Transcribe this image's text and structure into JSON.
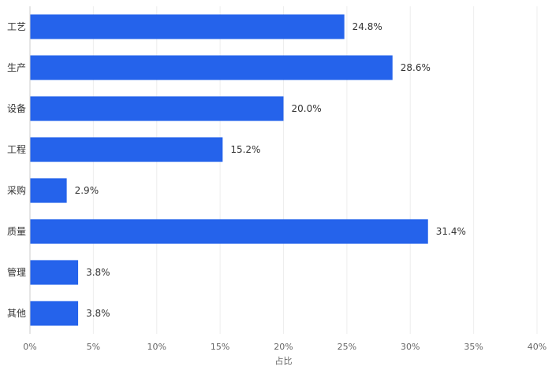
{
  "chart_data": {
    "type": "bar",
    "orientation": "horizontal",
    "categories": [
      "工艺",
      "生产",
      "设备",
      "工程",
      "采购",
      "质量",
      "管理",
      "其他"
    ],
    "values": [
      24.8,
      28.6,
      20.0,
      15.2,
      2.9,
      31.4,
      3.8,
      3.8
    ],
    "data_labels": [
      "24.8%",
      "28.6%",
      "20.0%",
      "15.2%",
      "2.9%",
      "31.4%",
      "3.8%",
      "3.8%"
    ],
    "x_ticks": [
      0,
      5,
      10,
      15,
      20,
      25,
      30,
      35,
      40
    ],
    "x_tick_labels": [
      "0%",
      "5%",
      "10%",
      "15%",
      "20%",
      "25%",
      "30%",
      "35%",
      "40%"
    ],
    "xlim": [
      0,
      40
    ],
    "xlabel": "占比",
    "ylabel": "",
    "title": "",
    "grid": "vertical",
    "legend": "none",
    "bar_color": "#2563eb",
    "grid_color": "#eeeeee",
    "axis_color": "#cccccc"
  }
}
